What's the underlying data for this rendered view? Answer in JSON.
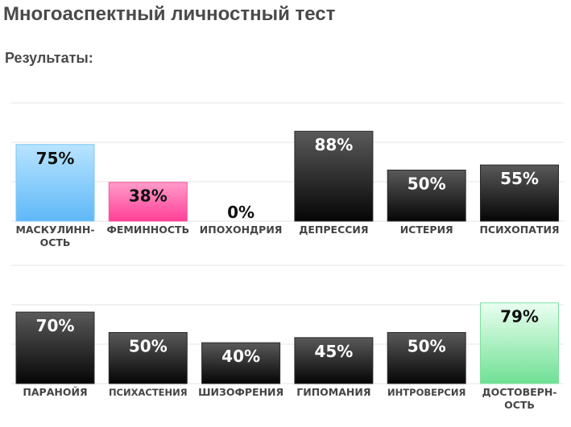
{
  "page": {
    "title": "Многоаспектный личностный тест",
    "subtitle": "Результаты:"
  },
  "colors": {
    "dark_top": "#5a5a5a",
    "dark_bottom": "#050505",
    "blue_top": "#b8e4ff",
    "blue_bottom": "#5fb8f8",
    "pink_top": "#ff9ccb",
    "pink_bottom": "#ff3f96",
    "green_top": "#eafff0",
    "green_bottom": "#6fe094",
    "gridline": "#e6e6e6"
  },
  "chart_data": [
    {
      "type": "bar",
      "ylim": [
        0,
        100
      ],
      "grid": true,
      "categories": [
        "МАСКУЛИНН-\nОСТЬ",
        "ФЕМИННОСТЬ",
        "ИПОХОНДРИЯ",
        "ДЕПРЕССИЯ",
        "ИСТЕРИЯ",
        "ПСИХОПАТИЯ"
      ],
      "values": [
        75,
        38,
        0,
        88,
        50,
        55
      ],
      "value_labels": [
        "75%",
        "38%",
        "0%",
        "88%",
        "50%",
        "55%"
      ],
      "bar_styles": [
        "blue",
        "pink",
        "dark",
        "dark",
        "dark",
        "dark"
      ]
    },
    {
      "type": "bar",
      "ylim": [
        0,
        100
      ],
      "grid": true,
      "categories": [
        "ПАРАНОЙЯ",
        "ПСИХАСТЕНИЯ",
        "ШИЗОФРЕНИЯ",
        "ГИПОМАНИЯ",
        "ИНТРОВЕРСИЯ",
        "ДОСТОВЕРН-\nОСТЬ"
      ],
      "values": [
        70,
        50,
        40,
        45,
        50,
        79
      ],
      "value_labels": [
        "70%",
        "50%",
        "40%",
        "45%",
        "50%",
        "79%"
      ],
      "bar_styles": [
        "dark",
        "dark",
        "dark",
        "dark",
        "dark",
        "green"
      ]
    }
  ]
}
